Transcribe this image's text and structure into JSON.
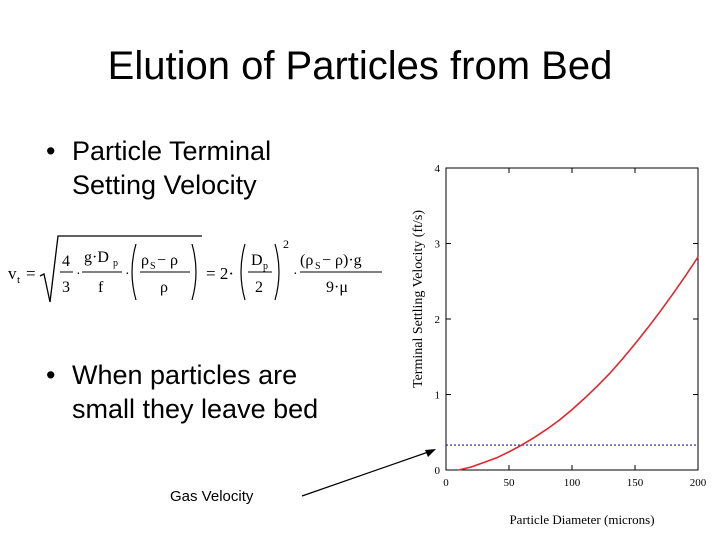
{
  "slide": {
    "title": "Elution of Particles from Bed",
    "bullet_symbol": "•",
    "bullet1_line1": "Particle Terminal",
    "bullet1_line2": "Setting Velocity",
    "bullet2_line1": "When particles are",
    "bullet2_line2": "small they leave bed",
    "gas_velocity_label": "Gas Velocity"
  },
  "formula": {
    "lhs": "v",
    "lhs_sub": "t",
    "equals": "=",
    "four": "4",
    "three": "3",
    "g_dp": "g·D",
    "p_sub": "p",
    "f": "f",
    "rho_s_minus_rho": "ρ",
    "s_sub": "S",
    "minus_rho": " − ρ",
    "rho": "ρ",
    "equals2": "= 2·",
    "dp": "D",
    "two": "2",
    "exp2": "2",
    "dot": "·",
    "rho_s_rho_g": "(ρ",
    "rho_s_rho_g_tail": " − ρ)·g",
    "nine_mu": "9·μ"
  },
  "chart_data": {
    "type": "line",
    "xlabel": "Particle Diameter (microns)",
    "ylabel": "Terminal Settling Velocity (ft/s)",
    "xlim": [
      0,
      200
    ],
    "ylim": [
      0,
      4
    ],
    "xticks": [
      "0",
      "50",
      "100",
      "150",
      "200"
    ],
    "yticks": [
      "0",
      "1",
      "2",
      "3",
      "4"
    ],
    "series": [
      {
        "color": "#e0262b",
        "x": [
          10,
          20,
          30,
          40,
          50,
          60,
          70,
          80,
          90,
          100,
          110,
          120,
          130,
          140,
          150,
          160,
          170,
          180,
          190,
          200
        ],
        "y": [
          0.0,
          0.04,
          0.1,
          0.16,
          0.24,
          0.33,
          0.43,
          0.54,
          0.66,
          0.8,
          0.95,
          1.11,
          1.28,
          1.47,
          1.67,
          1.88,
          2.1,
          2.33,
          2.57,
          2.82
        ]
      }
    ],
    "reference_line": {
      "y": 0.33,
      "color": "#1a1aa0",
      "style": "dotted"
    },
    "grid": false
  }
}
